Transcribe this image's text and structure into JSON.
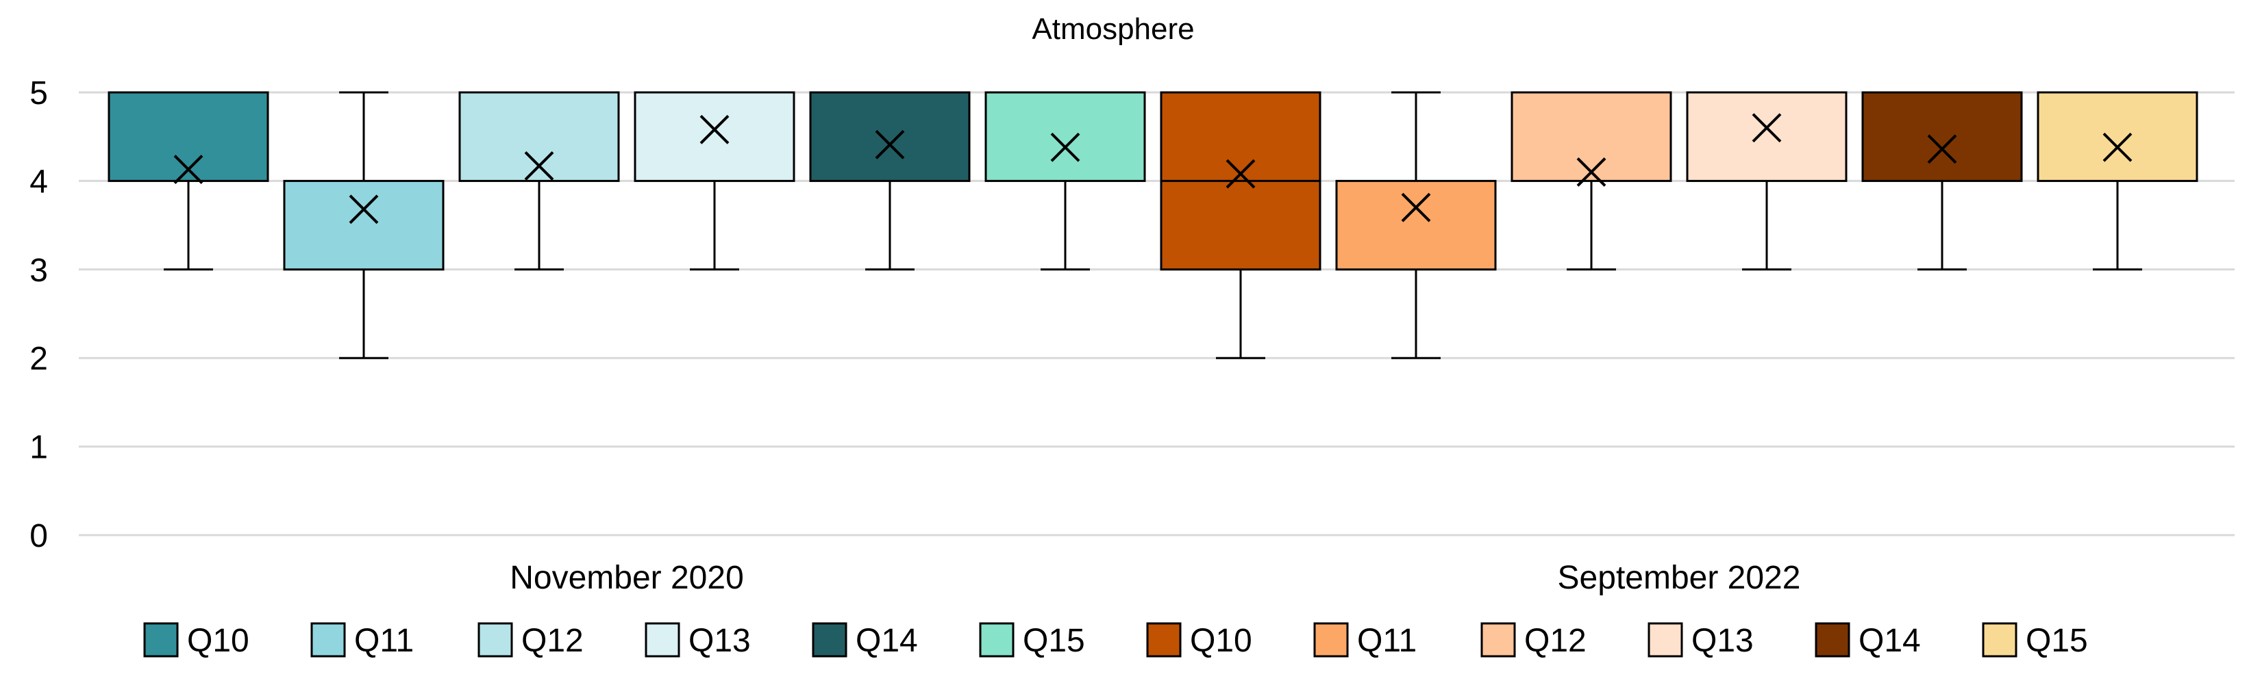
{
  "chart_data": {
    "type": "box",
    "title": "Atmosphere",
    "xlabel": "",
    "ylabel": "",
    "ylim": [
      0,
      5
    ],
    "yticks": [
      0,
      1,
      2,
      3,
      4,
      5
    ],
    "grid": true,
    "legend_position": "bottom",
    "groups": [
      {
        "label": "November 2020",
        "boxes": [
          {
            "name": "Q10",
            "color": "#31909A",
            "min": 3,
            "q1": 4,
            "median": 4,
            "q3": 5,
            "max": 5,
            "mean": 4.13
          },
          {
            "name": "Q11",
            "color": "#91D6DF",
            "min": 2,
            "q1": 3,
            "median": 4,
            "q3": 4,
            "max": 5,
            "mean": 3.68
          },
          {
            "name": "Q12",
            "color": "#B6E4E9",
            "min": 3,
            "q1": 4,
            "median": 4,
            "q3": 5,
            "max": 5,
            "mean": 4.17
          },
          {
            "name": "Q13",
            "color": "#DBF1F4",
            "min": 3,
            "q1": 4,
            "median": 5,
            "q3": 5,
            "max": 5,
            "mean": 4.58
          },
          {
            "name": "Q14",
            "color": "#215E63",
            "min": 3,
            "q1": 4,
            "median": 4,
            "q3": 5,
            "max": 5,
            "mean": 4.41
          },
          {
            "name": "Q15",
            "color": "#86E2C9",
            "min": 3,
            "q1": 4,
            "median": 4,
            "q3": 5,
            "max": 5,
            "mean": 4.38
          }
        ]
      },
      {
        "label": "September 2022",
        "boxes": [
          {
            "name": "Q10",
            "color": "#C05202",
            "min": 2,
            "q1": 3,
            "median": 4,
            "q3": 5,
            "max": 5,
            "mean": 4.08
          },
          {
            "name": "Q11",
            "color": "#FDA767",
            "min": 2,
            "q1": 3,
            "median": 4,
            "q3": 4,
            "max": 5,
            "mean": 3.7
          },
          {
            "name": "Q12",
            "color": "#FEC49A",
            "min": 3,
            "q1": 4,
            "median": 4,
            "q3": 5,
            "max": 5,
            "mean": 4.1
          },
          {
            "name": "Q13",
            "color": "#FEE2CD",
            "min": 3,
            "q1": 4,
            "median": 5,
            "q3": 5,
            "max": 5,
            "mean": 4.6
          },
          {
            "name": "Q14",
            "color": "#7C3501",
            "min": 3,
            "q1": 4,
            "median": 4,
            "q3": 5,
            "max": 5,
            "mean": 4.36
          },
          {
            "name": "Q15",
            "color": "#F9DA95",
            "min": 3,
            "q1": 4,
            "median": 4,
            "q3": 5,
            "max": 5,
            "mean": 4.38
          }
        ]
      }
    ],
    "legend": [
      {
        "label": "Q10",
        "color": "#31909A"
      },
      {
        "label": "Q11",
        "color": "#91D6DF"
      },
      {
        "label": "Q12",
        "color": "#B6E4E9"
      },
      {
        "label": "Q13",
        "color": "#DBF1F4"
      },
      {
        "label": "Q14",
        "color": "#215E63"
      },
      {
        "label": "Q15",
        "color": "#86E2C9"
      },
      {
        "label": "Q10",
        "color": "#C05202"
      },
      {
        "label": "Q11",
        "color": "#FDA767"
      },
      {
        "label": "Q12",
        "color": "#FEC49A"
      },
      {
        "label": "Q13",
        "color": "#FEE2CD"
      },
      {
        "label": "Q14",
        "color": "#7C3501"
      },
      {
        "label": "Q15",
        "color": "#F9DA95"
      }
    ]
  }
}
